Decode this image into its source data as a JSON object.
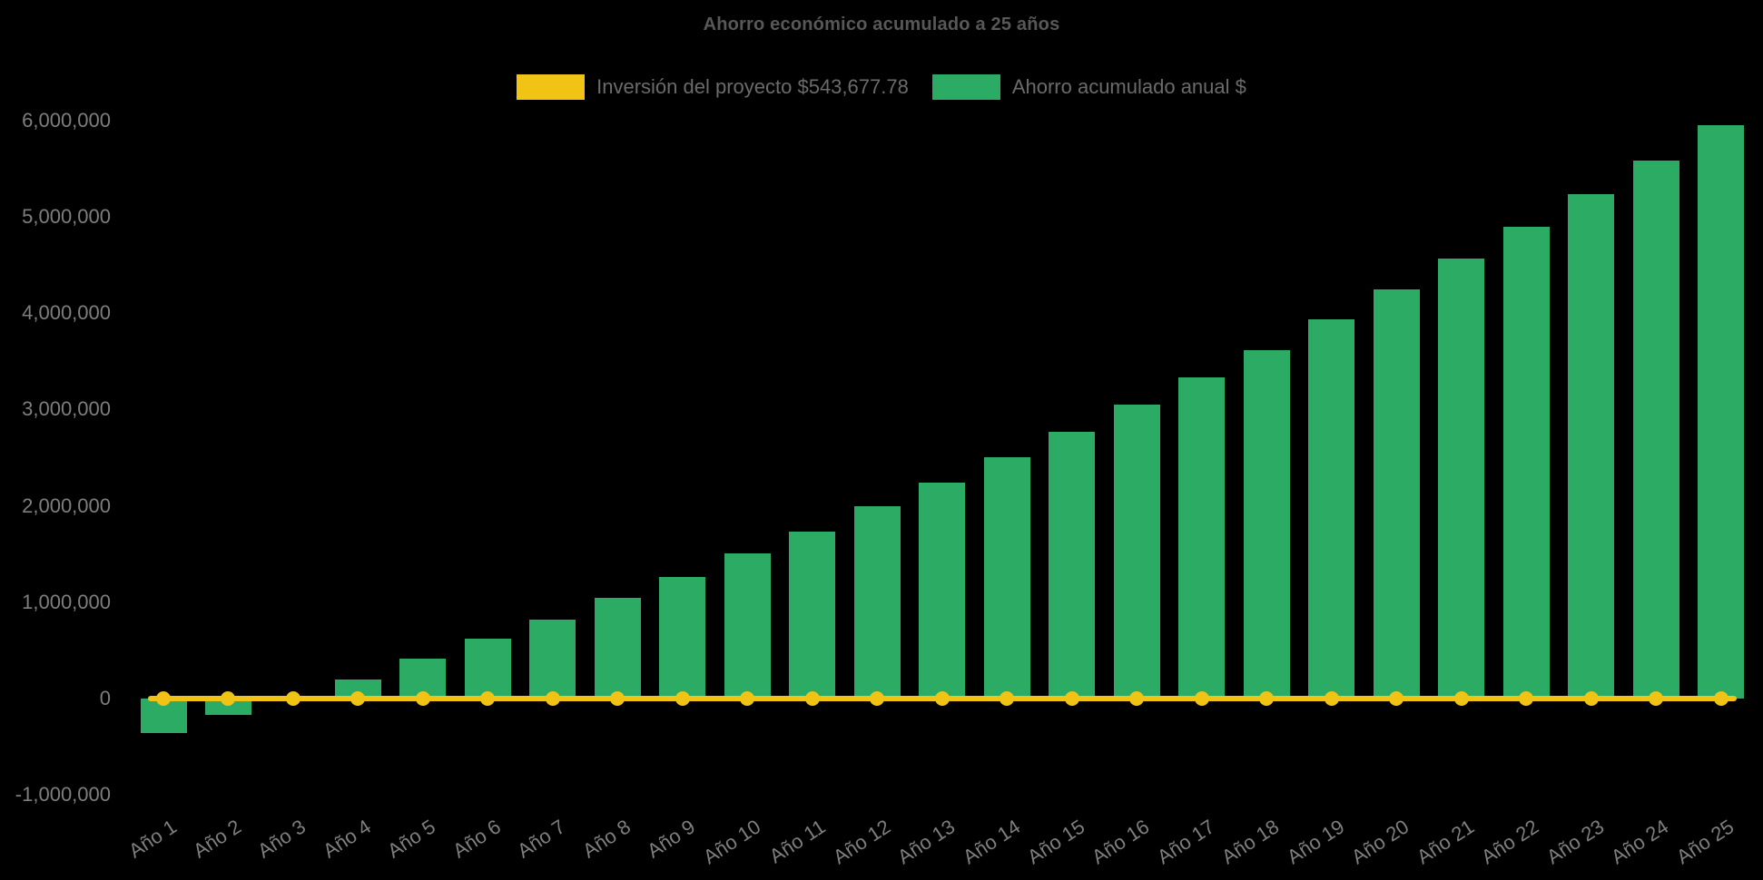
{
  "page": {
    "background": "#000000"
  },
  "chart": {
    "title": "Ahorro económico acumulado a 25 años",
    "colors": {
      "savings_green": "#2BAB63",
      "investment_yellow": "#F0C315",
      "title_text": "#585858",
      "legend_text": "#6B6B6B",
      "axis_text": "#7E7E7E"
    }
  },
  "legend": {
    "items": [
      {
        "id": "investment",
        "label": "Inversión del proyecto $543,677.78",
        "swatch_color": "#F0C315"
      },
      {
        "id": "savings",
        "label": "Ahorro acumulado anual $",
        "swatch_color": "#2BAB63"
      }
    ]
  },
  "chart_data": {
    "type": "bar",
    "title": "Ahorro económico acumulado a 25 años",
    "categories": [
      "Año 1",
      "Año 2",
      "Año 3",
      "Año 4",
      "Año 5",
      "Año 6",
      "Año 7",
      "Año 8",
      "Año 9",
      "Año 10",
      "Año 11",
      "Año 12",
      "Año 13",
      "Año 14",
      "Año 15",
      "Año 16",
      "Año 17",
      "Año 18",
      "Año 19",
      "Año 20",
      "Año 21",
      "Año 22",
      "Año 23",
      "Año 24",
      "Año 25"
    ],
    "series": [
      {
        "name": "Ahorro acumulado anual $",
        "type": "bar",
        "color": "#2BAB63",
        "values": [
          -360000,
          -170000,
          20000,
          200000,
          410000,
          620000,
          820000,
          1045000,
          1260000,
          1505000,
          1735000,
          1995000,
          2245000,
          2505000,
          2770000,
          3050000,
          3330000,
          3615000,
          3935000,
          4245000,
          4565000,
          4895000,
          5235000,
          5580000,
          5955000
        ]
      },
      {
        "name": "Inversión del proyecto $543,677.78",
        "type": "line",
        "color": "#F0C315",
        "marker": "circle",
        "investment_amount_text": "$543,677.78",
        "plotted_flat_at": 0,
        "values": [
          0,
          0,
          0,
          0,
          0,
          0,
          0,
          0,
          0,
          0,
          0,
          0,
          0,
          0,
          0,
          0,
          0,
          0,
          0,
          0,
          0,
          0,
          0,
          0,
          0
        ]
      }
    ],
    "xlabel": "",
    "ylabel": "",
    "ylim": [
      -1000000,
      6000000
    ],
    "ytick_step": 1000000,
    "yticks": [
      {
        "value": -1000000,
        "label": "-1,000,000"
      },
      {
        "value": 0,
        "label": "0"
      },
      {
        "value": 1000000,
        "label": "1,000,000"
      },
      {
        "value": 2000000,
        "label": "2,000,000"
      },
      {
        "value": 3000000,
        "label": "3,000,000"
      },
      {
        "value": 4000000,
        "label": "4,000,000"
      },
      {
        "value": 5000000,
        "label": "5,000,000"
      },
      {
        "value": 6000000,
        "label": "6,000,000"
      }
    ],
    "grid": false,
    "legend_position": "top",
    "x_tick_rotation_deg": -33
  }
}
